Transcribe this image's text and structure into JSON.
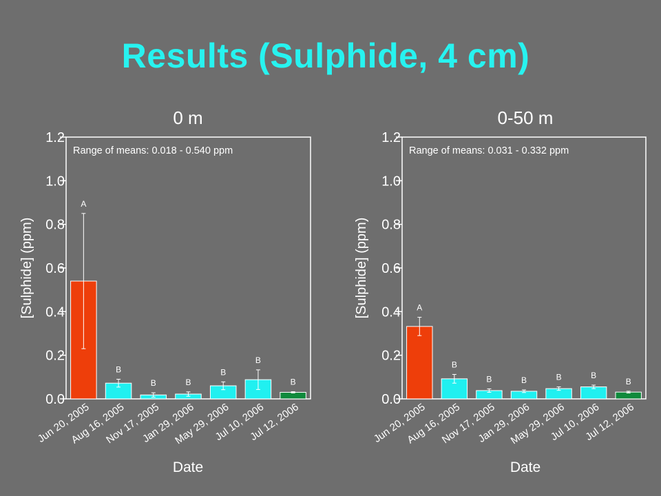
{
  "slide": {
    "title": "Results (Sulphide, 4 cm)",
    "background": "#6e6e6e",
    "title_color": "#27f3f0"
  },
  "chart_data": [
    {
      "type": "bar",
      "title": "0 m",
      "xlabel": "Date",
      "ylabel": "[Sulphide] (ppm)",
      "ylim": [
        0,
        1.2
      ],
      "yticks": [
        "0.0",
        "0.2",
        "0.4",
        "0.6",
        "0.8",
        "1.0",
        "1.2"
      ],
      "annotation": "Range of means: 0.018 - 0.540 ppm",
      "grid": false,
      "categories": [
        "Jun 20, 2005",
        "Aug 16, 2005",
        "Nov 17, 2005",
        "Jan 29, 2006",
        "May 29, 2006",
        "Jul 10, 2006",
        "Jul 12, 2006"
      ],
      "values": [
        0.54,
        0.072,
        0.018,
        0.022,
        0.06,
        0.088,
        0.03
      ],
      "errors": [
        0.31,
        0.018,
        0.01,
        0.01,
        0.018,
        0.045,
        0.003
      ],
      "groups": [
        "A",
        "B",
        "B",
        "B",
        "B",
        "B",
        "B"
      ],
      "colors": [
        "#ee3e0a",
        "#20f0f0",
        "#20f0f0",
        "#20f0f0",
        "#20f0f0",
        "#20f0f0",
        "#0f8a3c"
      ]
    },
    {
      "type": "bar",
      "title": "0-50 m",
      "xlabel": "Date",
      "ylabel": "[Sulphide] (ppm)",
      "ylim": [
        0,
        1.2
      ],
      "yticks": [
        "0.0",
        "0.2",
        "0.4",
        "0.6",
        "0.8",
        "1.0",
        "1.2"
      ],
      "annotation": "Range of means: 0.031 - 0.332 ppm",
      "grid": false,
      "categories": [
        "Jun 20, 2005",
        "Aug 16, 2005",
        "Nov 17, 2005",
        "Jan 29, 2006",
        "May 29, 2006",
        "Jul 10, 2006",
        "Jul 12, 2006"
      ],
      "values": [
        0.332,
        0.092,
        0.038,
        0.035,
        0.047,
        0.055,
        0.031
      ],
      "errors": [
        0.042,
        0.02,
        0.008,
        0.006,
        0.008,
        0.008,
        0.004
      ],
      "groups": [
        "A",
        "B",
        "B",
        "B",
        "B",
        "B",
        "B"
      ],
      "colors": [
        "#ee3e0a",
        "#20f0f0",
        "#20f0f0",
        "#20f0f0",
        "#20f0f0",
        "#20f0f0",
        "#0f8a3c"
      ]
    }
  ]
}
